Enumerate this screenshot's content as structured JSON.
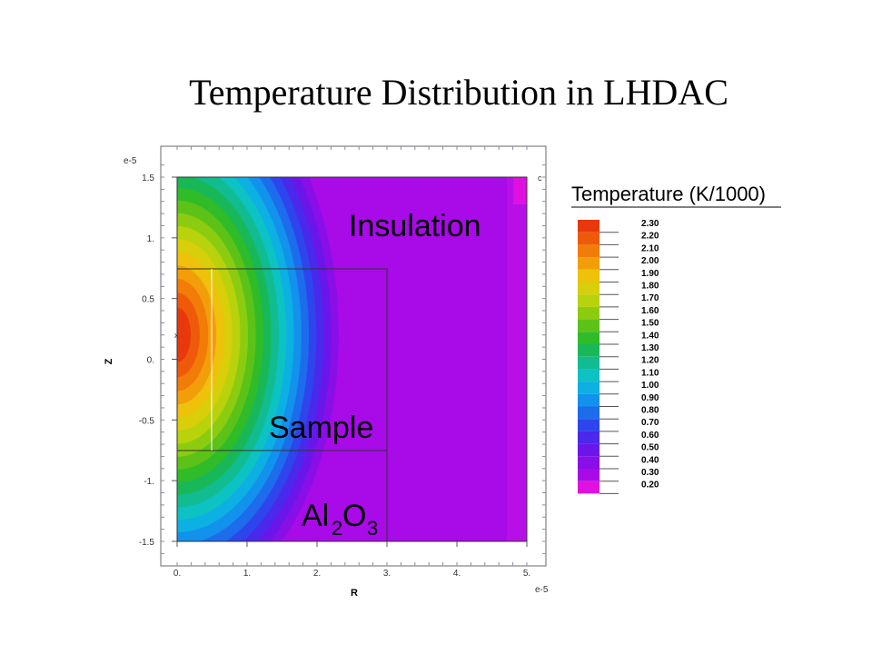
{
  "title": "Temperature Distribution in LHDAC",
  "chart_data": {
    "type": "heatmap",
    "title": "Temperature Distribution in LHDAC",
    "xlabel": "R",
    "ylabel": "Z",
    "x_exponent": "e-5",
    "y_exponent": "e-5",
    "xlim": [
      0,
      5
    ],
    "ylim": [
      -1.5,
      1.5
    ],
    "x_ticks": [
      0,
      1,
      2,
      3,
      4,
      5
    ],
    "x_tick_labels": [
      "0.",
      "1.",
      "2.",
      "3.",
      "4.",
      "5."
    ],
    "y_ticks": [
      1.5,
      1,
      0.5,
      0,
      -0.5,
      -1,
      -1.5
    ],
    "y_tick_labels": [
      "1.5",
      "1.",
      "0.5",
      "0.",
      "-0.5",
      "-1.",
      "-1.5"
    ],
    "hotspot": {
      "r": 0,
      "z": 0.2,
      "max_temperature": 2.3
    },
    "regions": [
      {
        "name": "Insulation",
        "r": [
          0,
          5
        ],
        "z": [
          -1.5,
          1.5
        ]
      },
      {
        "name": "Sample",
        "r": [
          0,
          3
        ],
        "z": [
          -0.75,
          0.75
        ]
      },
      {
        "name": "Al2O3",
        "r": [
          0,
          3
        ],
        "z": [
          -1.5,
          -0.75
        ]
      }
    ],
    "region_labels": {
      "insulation": "Insulation",
      "sample": "Sample",
      "al_base": "Al",
      "al_sub1": "2",
      "al_mid": "O",
      "al_sub2": "3"
    },
    "legend": {
      "title": "Temperature (K/1000)",
      "levels": [
        {
          "value": "2.30",
          "color": "#e8380c"
        },
        {
          "value": "2.20",
          "color": "#ee5a0a"
        },
        {
          "value": "2.10",
          "color": "#f27c08"
        },
        {
          "value": "2.00",
          "color": "#f29e0a"
        },
        {
          "value": "1.90",
          "color": "#eec10a"
        },
        {
          "value": "1.80",
          "color": "#d8ce0a"
        },
        {
          "value": "1.70",
          "color": "#b8d20c"
        },
        {
          "value": "1.60",
          "color": "#8ccc10"
        },
        {
          "value": "1.50",
          "color": "#5cc218"
        },
        {
          "value": "1.40",
          "color": "#30bc28"
        },
        {
          "value": "1.30",
          "color": "#18b858"
        },
        {
          "value": "1.20",
          "color": "#10bc90"
        },
        {
          "value": "1.10",
          "color": "#0cc2c2"
        },
        {
          "value": "1.00",
          "color": "#0cb0e2"
        },
        {
          "value": "0.90",
          "color": "#1292ec"
        },
        {
          "value": "0.80",
          "color": "#1c6cec"
        },
        {
          "value": "0.70",
          "color": "#2e44ec"
        },
        {
          "value": "0.60",
          "color": "#4a28ec"
        },
        {
          "value": "0.50",
          "color": "#6a16ea"
        },
        {
          "value": "0.40",
          "color": "#8a0ee8"
        },
        {
          "value": "0.30",
          "color": "#a80ae8"
        },
        {
          "value": "0.20",
          "color": "#e010e0"
        }
      ]
    }
  }
}
